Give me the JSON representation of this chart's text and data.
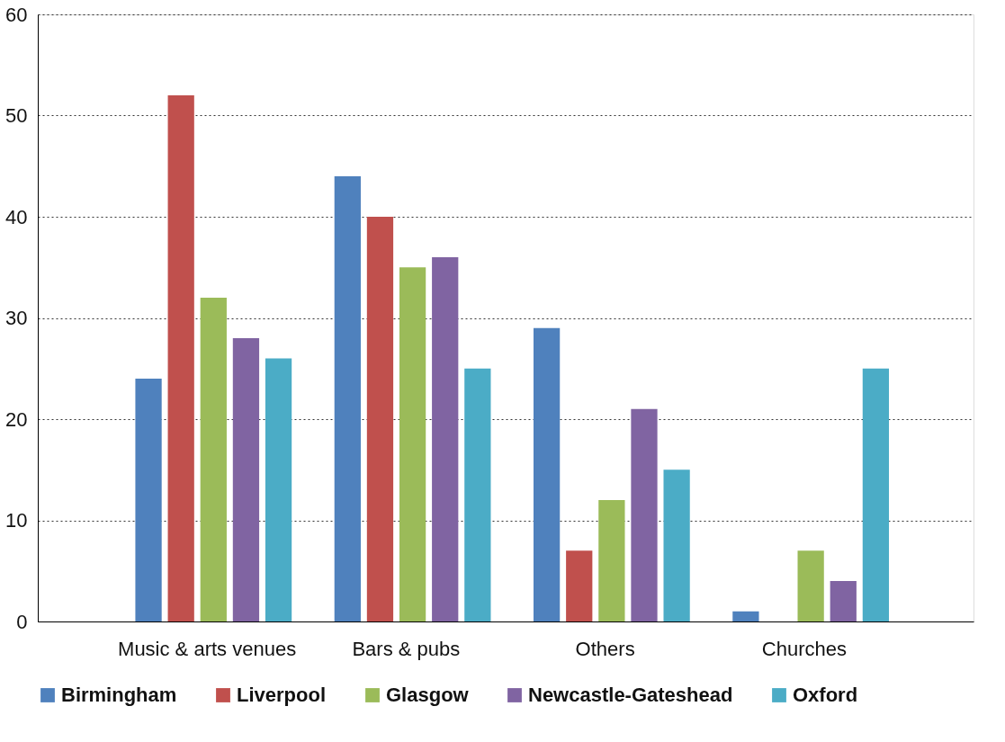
{
  "chart_data": {
    "type": "bar",
    "categories": [
      "Music & arts venues",
      "Bars & pubs",
      "Others",
      "Churches"
    ],
    "series": [
      {
        "name": "Birmingham",
        "color": "#4f81bd",
        "values": [
          24,
          44,
          29,
          1
        ]
      },
      {
        "name": "Liverpool",
        "color": "#c0504d",
        "values": [
          52,
          40,
          7,
          0
        ]
      },
      {
        "name": "Glasgow",
        "color": "#9bbb59",
        "values": [
          32,
          35,
          12,
          7
        ]
      },
      {
        "name": "Newcastle-Gateshead",
        "color": "#8064a2",
        "values": [
          28,
          36,
          21,
          4
        ]
      },
      {
        "name": "Oxford",
        "color": "#4bacc6",
        "values": [
          26,
          25,
          15,
          25
        ]
      }
    ],
    "ylim": [
      0,
      60
    ],
    "yticks": [
      0,
      10,
      20,
      30,
      40,
      50,
      60
    ],
    "grid": "y",
    "legend": "bottom"
  }
}
